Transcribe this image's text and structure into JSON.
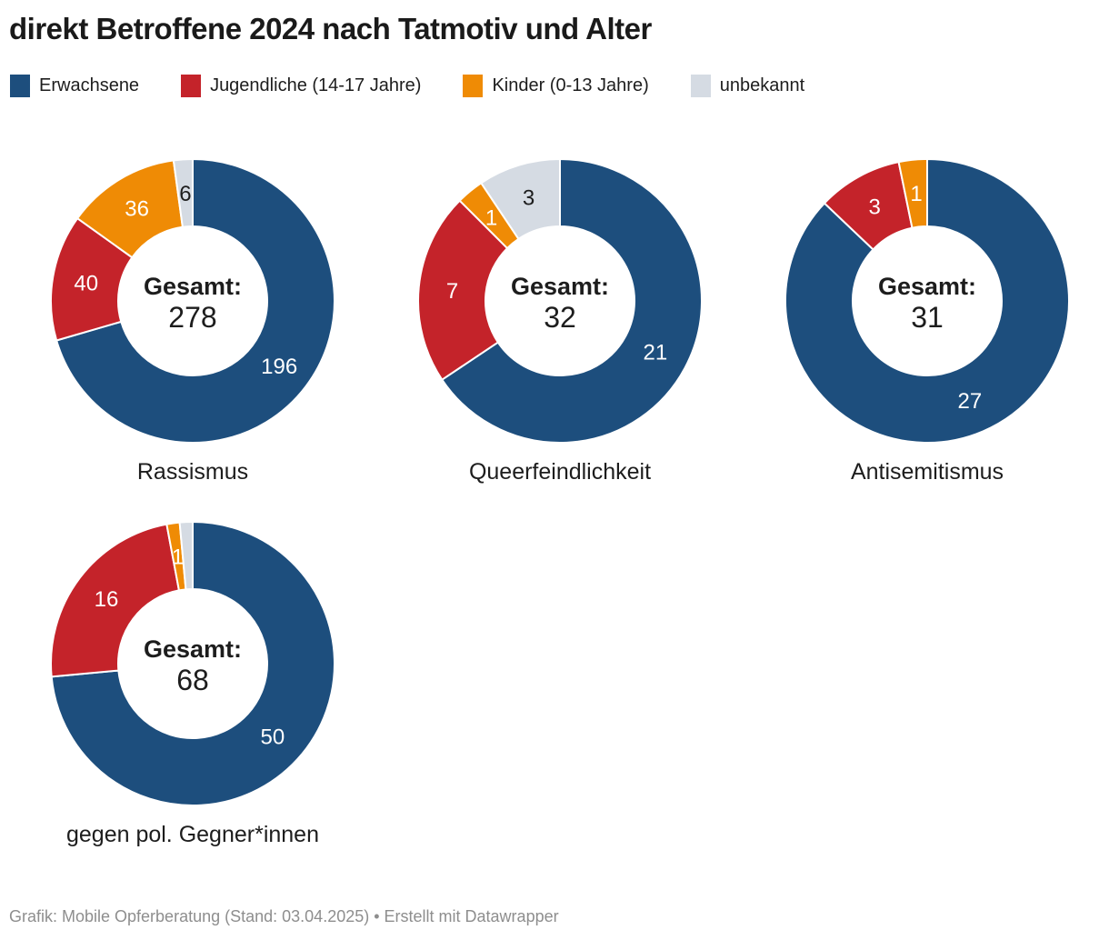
{
  "title": "direkt Betroffene 2024 nach Tatmotiv und Alter",
  "chart_data": {
    "type": "pie",
    "subtype": "donut-small-multiples",
    "direction": "clockwise",
    "start_angle_deg": 0,
    "categories": [
      "Erwachsene",
      "Jugendliche (14-17 Jahre)",
      "Kinder (0-13 Jahre)",
      "unbekannt"
    ],
    "colors": [
      "#1d4e7d",
      "#c4232a",
      "#ef8b05",
      "#d5dbe3"
    ],
    "label_colors": [
      "#ffffff",
      "#ffffff",
      "#ffffff",
      "#1d1d1d"
    ],
    "center_label": "Gesamt:",
    "legend_position": "top",
    "charts": [
      {
        "caption": "Rassismus",
        "total": 278,
        "values": [
          196,
          40,
          36,
          6
        ],
        "labels_shown": [
          true,
          true,
          true,
          true
        ]
      },
      {
        "caption": "Queerfeindlichkeit",
        "total": 32,
        "values": [
          21,
          7,
          1,
          3
        ],
        "labels_shown": [
          true,
          true,
          true,
          true
        ]
      },
      {
        "caption": "Antisemitismus",
        "total": 31,
        "values": [
          27,
          3,
          1,
          0
        ],
        "labels_shown": [
          true,
          true,
          true,
          false
        ]
      },
      {
        "caption": "gegen pol. Gegner*innen",
        "total": 68,
        "values": [
          50,
          16,
          1,
          1
        ],
        "labels_shown": [
          true,
          true,
          true,
          false
        ]
      }
    ]
  },
  "footer": {
    "text": "Grafik: Mobile Opferberatung (Stand: 03.04.2025) • Erstellt mit Datawrapper"
  }
}
